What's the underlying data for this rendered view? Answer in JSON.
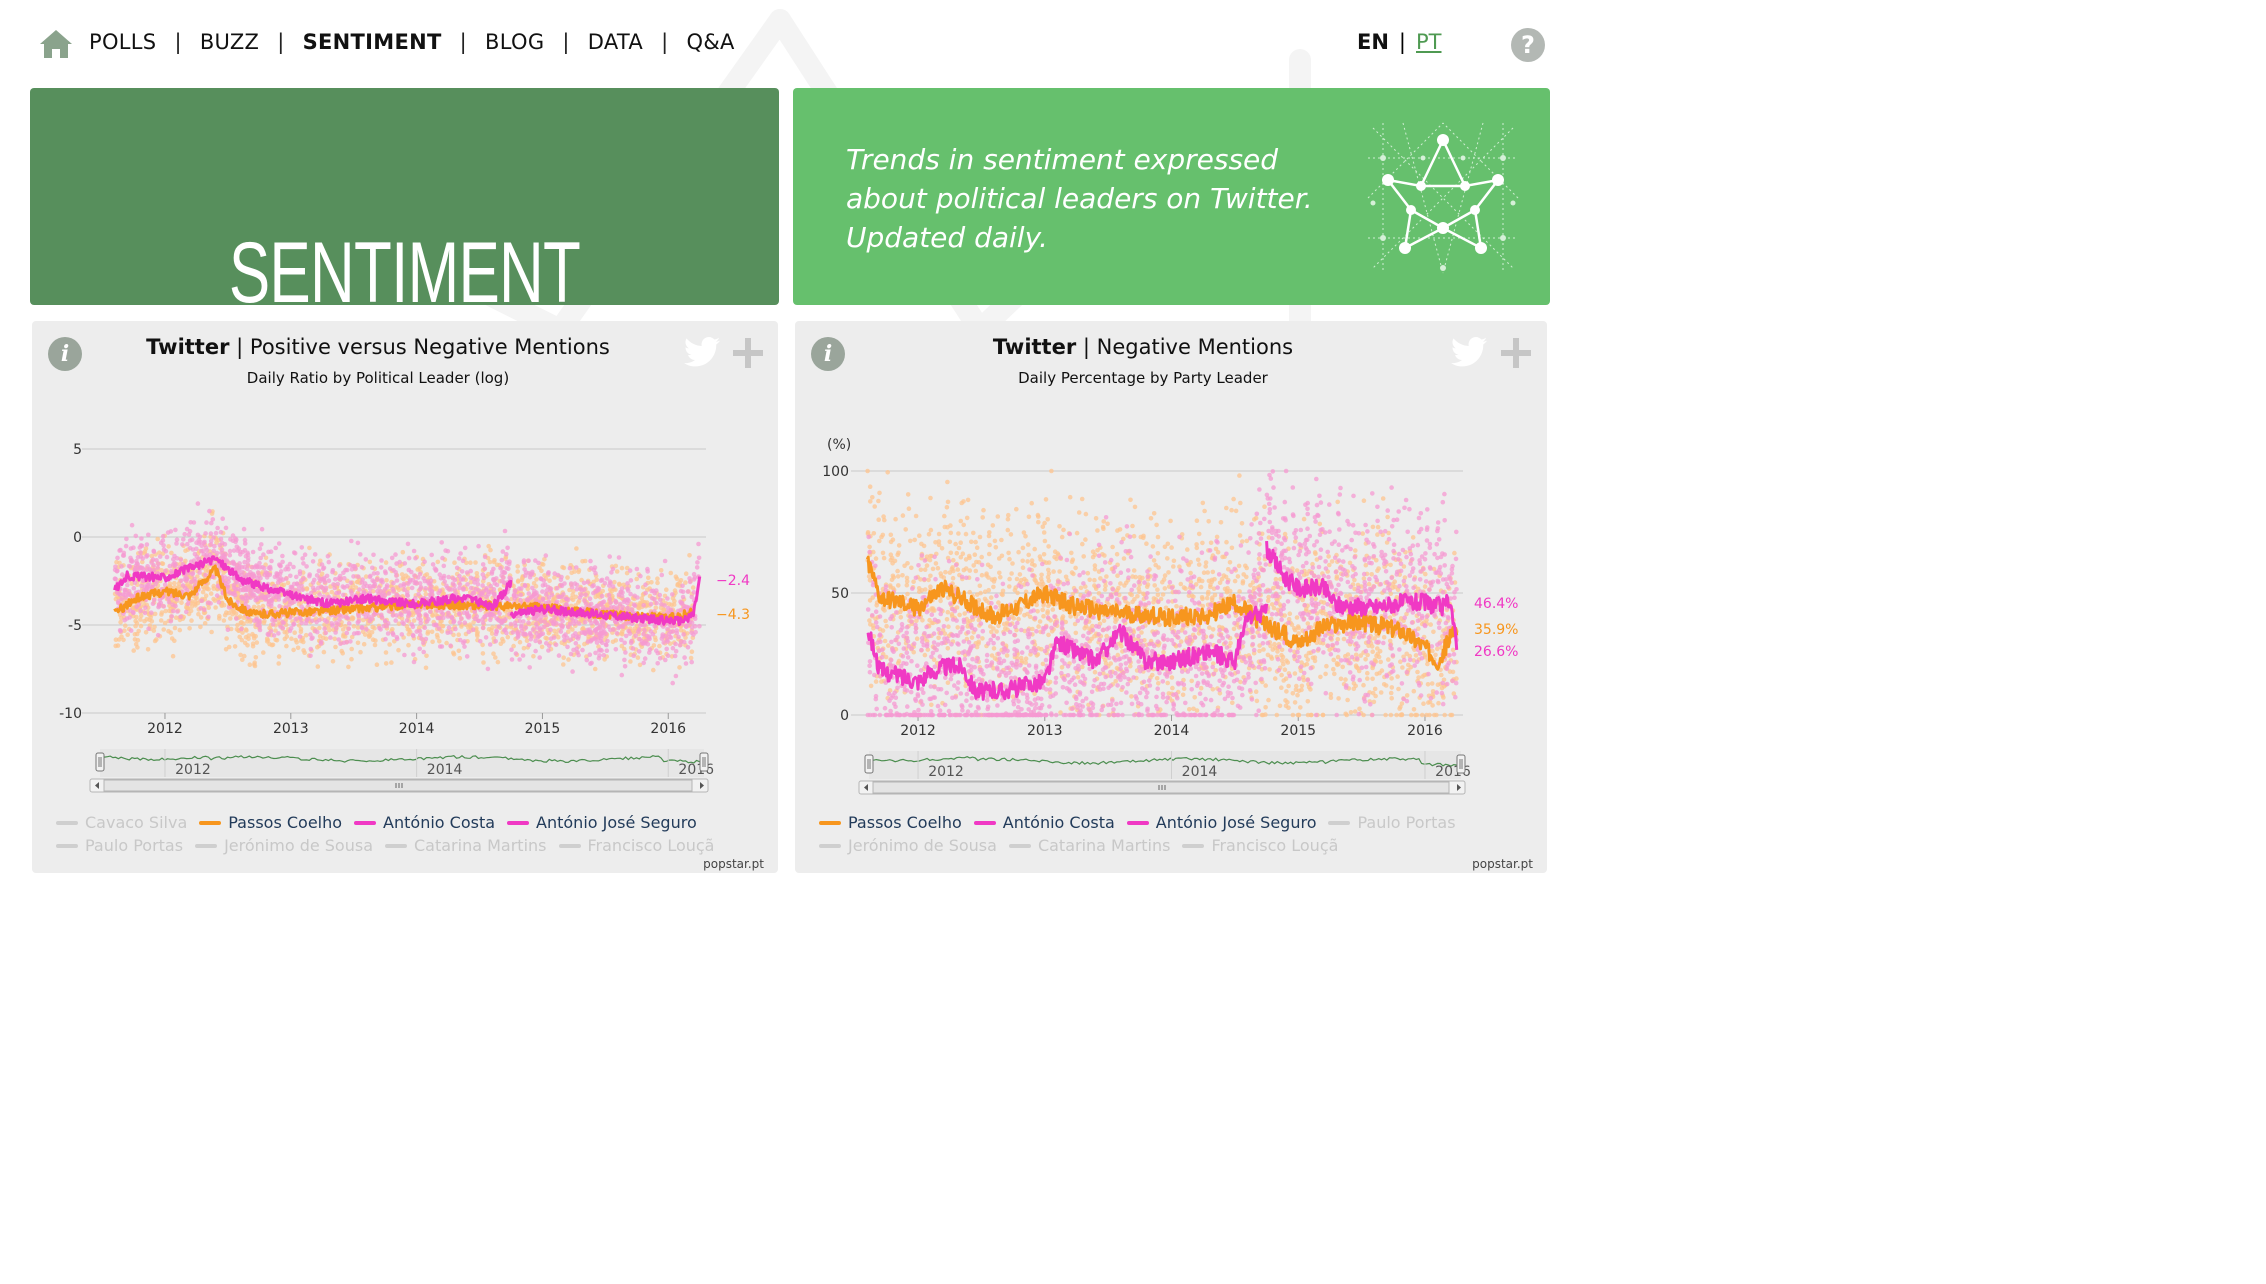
{
  "nav": {
    "items": [
      "POLLS",
      "BUZZ",
      "SENTIMENT",
      "BLOG",
      "DATA",
      "Q&A"
    ],
    "active": "SENTIMENT",
    "separator": "|",
    "lang": {
      "en": "EN",
      "pt": "PT",
      "separator": "|"
    },
    "help": "?"
  },
  "hero": {
    "title": "SENTIMENT",
    "tagline": [
      "Trends in sentiment expressed",
      "about political leaders on Twitter.",
      "Updated daily."
    ]
  },
  "colors": {
    "orange": "#f7961e",
    "pink": "#f039c4",
    "orange_pt": "#fdc48f",
    "pink_pt": "#f59ad2",
    "disabled": "#cfcfcf",
    "green_dark": "#578f5c",
    "green_light": "#66c06d",
    "navigator": "#4b8d4e"
  },
  "panels": [
    {
      "title_bold": "Twitter",
      "title_sep": "|",
      "title_rest": "Positive versus Negative Mentions",
      "subtitle": "Daily Ratio by Political Leader (log)",
      "info": "i",
      "footer": "popstar.pt",
      "legend": [
        [
          {
            "label": "Cavaco Silva",
            "on": false
          },
          {
            "label": "Passos Coelho",
            "on": true,
            "color": "#f7961e"
          },
          {
            "label": "António Costa",
            "on": true,
            "color": "#f039c4"
          },
          {
            "label": "António José Seguro",
            "on": true,
            "color": "#f039c4"
          }
        ],
        [
          {
            "label": "Paulo Portas",
            "on": false
          },
          {
            "label": "Jerónimo de Sousa",
            "on": false
          },
          {
            "label": "Catarina Martins",
            "on": false
          },
          {
            "label": "Francisco Louçã",
            "on": false
          }
        ]
      ],
      "chart_data": {
        "type": "line",
        "ylabel": "",
        "yticks": [
          "5",
          "0",
          "-5",
          "-10"
        ],
        "ylim": [
          -10,
          5
        ],
        "xticks": [
          "2012",
          "2013",
          "2014",
          "2015",
          "2016"
        ],
        "navigator_ticks": [
          "2012",
          "2014",
          "2016"
        ],
        "end_labels": [
          {
            "text": "−2.4",
            "color": "#f039c4"
          },
          {
            "text": "−4.3",
            "color": "#f7961e"
          }
        ],
        "series": [
          {
            "name": "Passos Coelho",
            "color": "#f7961e",
            "points": [
              [
                2011.6,
                -4.3
              ],
              [
                2011.8,
                -3.4
              ],
              [
                2012.0,
                -3.1
              ],
              [
                2012.2,
                -3.3
              ],
              [
                2012.4,
                -1.8
              ],
              [
                2012.5,
                -3.6
              ],
              [
                2012.7,
                -4.4
              ],
              [
                2013.0,
                -4.3
              ],
              [
                2013.5,
                -4.1
              ],
              [
                2014.0,
                -3.8
              ],
              [
                2014.5,
                -3.9
              ],
              [
                2015.0,
                -4.0
              ],
              [
                2015.5,
                -4.4
              ],
              [
                2016.0,
                -4.6
              ],
              [
                2016.2,
                -4.3
              ]
            ]
          },
          {
            "name": "António José Seguro",
            "color": "#f039c4",
            "points": [
              [
                2011.6,
                -3.0
              ],
              [
                2011.7,
                -2.2
              ],
              [
                2012.0,
                -2.3
              ],
              [
                2012.3,
                -1.5
              ],
              [
                2012.4,
                -1.2
              ],
              [
                2012.6,
                -2.4
              ],
              [
                2012.8,
                -2.9
              ],
              [
                2013.0,
                -3.3
              ],
              [
                2013.3,
                -3.8
              ],
              [
                2013.6,
                -3.5
              ],
              [
                2014.0,
                -3.8
              ],
              [
                2014.4,
                -3.4
              ],
              [
                2014.6,
                -4.0
              ],
              [
                2014.75,
                -2.6
              ]
            ]
          },
          {
            "name": "António Costa",
            "color": "#f039c4",
            "points": [
              [
                2014.75,
                -4.4
              ],
              [
                2015.0,
                -4.1
              ],
              [
                2015.3,
                -4.3
              ],
              [
                2015.6,
                -4.5
              ],
              [
                2015.9,
                -4.7
              ],
              [
                2016.1,
                -4.8
              ],
              [
                2016.2,
                -4.4
              ],
              [
                2016.25,
                -2.4
              ]
            ]
          }
        ]
      }
    },
    {
      "title_bold": "Twitter",
      "title_sep": "|",
      "title_rest": "Negative Mentions",
      "subtitle": "Daily Percentage by Party Leader",
      "info": "i",
      "footer": "popstar.pt",
      "legend": [
        [
          {
            "label": "Passos Coelho",
            "on": true,
            "color": "#f7961e"
          },
          {
            "label": "António Costa",
            "on": true,
            "color": "#f039c4"
          },
          {
            "label": "António José Seguro",
            "on": true,
            "color": "#f039c4"
          },
          {
            "label": "Paulo Portas",
            "on": false
          }
        ],
        [
          {
            "label": "Jerónimo de Sousa",
            "on": false
          },
          {
            "label": "Catarina Martins",
            "on": false
          },
          {
            "label": "Francisco Louçã",
            "on": false
          }
        ]
      ],
      "chart_data": {
        "type": "line",
        "ylabel": "(%)",
        "yticks": [
          "100",
          "50",
          "0"
        ],
        "ylim": [
          0,
          100
        ],
        "xticks": [
          "2012",
          "2013",
          "2014",
          "2015",
          "2016"
        ],
        "navigator_ticks": [
          "2012",
          "2014",
          "2016"
        ],
        "end_labels": [
          {
            "text": "46.4%",
            "color": "#f039c4"
          },
          {
            "text": "35.9%",
            "color": "#f7961e"
          },
          {
            "text": "26.6%",
            "color": "#f039c4"
          }
        ],
        "series": [
          {
            "name": "Passos Coelho",
            "color": "#f7961e",
            "points": [
              [
                2011.6,
                63
              ],
              [
                2011.7,
                48
              ],
              [
                2012.0,
                44
              ],
              [
                2012.2,
                52
              ],
              [
                2012.4,
                46
              ],
              [
                2012.6,
                40
              ],
              [
                2013.0,
                50
              ],
              [
                2013.2,
                45
              ],
              [
                2013.5,
                42
              ],
              [
                2014.0,
                40
              ],
              [
                2014.3,
                41
              ],
              [
                2014.5,
                46
              ],
              [
                2014.7,
                38
              ],
              [
                2015.0,
                30
              ],
              [
                2015.2,
                36
              ],
              [
                2015.5,
                38
              ],
              [
                2015.8,
                35
              ],
              [
                2016.0,
                28
              ],
              [
                2016.1,
                22
              ],
              [
                2016.25,
                35.9
              ]
            ]
          },
          {
            "name": "António José Seguro",
            "color": "#f039c4",
            "points": [
              [
                2011.6,
                36
              ],
              [
                2011.7,
                18
              ],
              [
                2012.0,
                14
              ],
              [
                2012.2,
                20
              ],
              [
                2012.35,
                20
              ],
              [
                2012.45,
                10
              ],
              [
                2012.7,
                10
              ],
              [
                2013.0,
                14
              ],
              [
                2013.1,
                30
              ],
              [
                2013.4,
                22
              ],
              [
                2013.6,
                34
              ],
              [
                2013.8,
                22
              ],
              [
                2014.0,
                22
              ],
              [
                2014.3,
                26
              ],
              [
                2014.5,
                22
              ],
              [
                2014.6,
                40
              ],
              [
                2014.75,
                42
              ]
            ]
          },
          {
            "name": "António Costa",
            "color": "#f039c4",
            "points": [
              [
                2014.75,
                68
              ],
              [
                2014.9,
                56
              ],
              [
                2015.0,
                52
              ],
              [
                2015.2,
                52
              ],
              [
                2015.3,
                45
              ],
              [
                2015.6,
                44
              ],
              [
                2015.8,
                46
              ],
              [
                2016.0,
                46
              ],
              [
                2016.15,
                44
              ],
              [
                2016.2,
                48
              ],
              [
                2016.25,
                26.6
              ]
            ]
          }
        ]
      }
    }
  ]
}
